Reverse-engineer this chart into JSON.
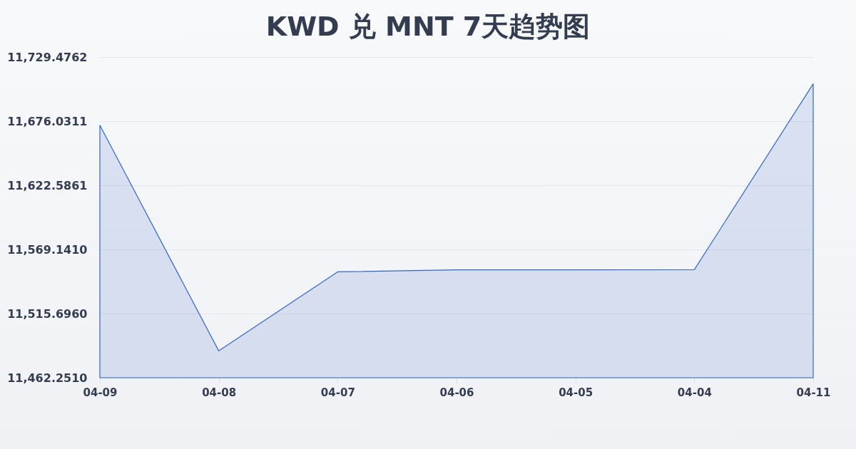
{
  "chart_data": {
    "type": "area",
    "title": "KWD 兑 MNT 7天趋势图",
    "categories": [
      "04-09",
      "04-08",
      "04-07",
      "04-06",
      "04-05",
      "04-04",
      "04-11"
    ],
    "values": [
      11672.6,
      11484.6,
      11550.5,
      11552.1,
      11552.1,
      11552.3,
      11707.1
    ],
    "color": "#3366cc",
    "ylim": [
      11462.251,
      11729.4762
    ],
    "yticks": [
      {
        "value": 11462.251,
        "label": "11,462.2510"
      },
      {
        "value": 11515.696,
        "label": "11,515.6960"
      },
      {
        "value": 11569.141,
        "label": "11,569.1410"
      },
      {
        "value": 11622.5861,
        "label": "11,622.5861"
      },
      {
        "value": 11676.0311,
        "label": "11,676.0311"
      },
      {
        "value": 11729.4762,
        "label": "11,729.4762"
      }
    ],
    "grid": "y"
  }
}
